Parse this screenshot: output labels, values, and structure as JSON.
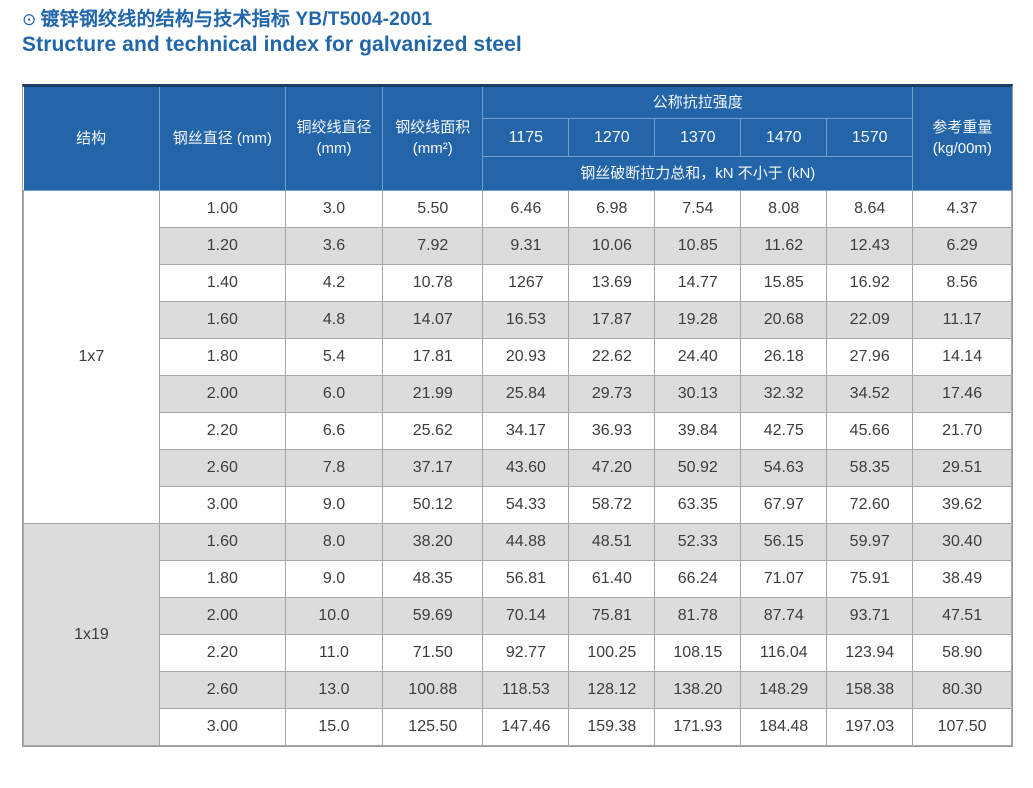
{
  "page": {
    "bullet_icon": "⊙",
    "title_cn": "镀锌钢绞线的结构与技术指标 YB/T5004-2001",
    "title_en": "Structure and technical index for galvanized steel"
  },
  "table": {
    "header": {
      "structure": "结构",
      "wire_diameter": "钢丝直径 (mm)",
      "strand_diameter": "铜绞线直径 (mm)",
      "strand_area": "钢绞线面积 (mm²)",
      "tensile_group": "公称抗拉强度",
      "tensile_grades": [
        "1175",
        "1270",
        "1370",
        "1470",
        "1570"
      ],
      "breaking_note": "钢丝破断拉力总和，kN 不小于 (kN)",
      "ref_weight": "参考重量 (kg/00m)"
    },
    "sections": [
      {
        "structure": "1x7",
        "rows": [
          [
            "1.00",
            "3.0",
            "5.50",
            "6.46",
            "6.98",
            "7.54",
            "8.08",
            "8.64",
            "4.37"
          ],
          [
            "1.20",
            "3.6",
            "7.92",
            "9.31",
            "10.06",
            "10.85",
            "11.62",
            "12.43",
            "6.29"
          ],
          [
            "1.40",
            "4.2",
            "10.78",
            "1267",
            "13.69",
            "14.77",
            "15.85",
            "16.92",
            "8.56"
          ],
          [
            "1.60",
            "4.8",
            "14.07",
            "16.53",
            "17.87",
            "19.28",
            "20.68",
            "22.09",
            "11.17"
          ],
          [
            "1.80",
            "5.4",
            "17.81",
            "20.93",
            "22.62",
            "24.40",
            "26.18",
            "27.96",
            "14.14"
          ],
          [
            "2.00",
            "6.0",
            "21.99",
            "25.84",
            "29.73",
            "30.13",
            "32.32",
            "34.52",
            "17.46"
          ],
          [
            "2.20",
            "6.6",
            "25.62",
            "34.17",
            "36.93",
            "39.84",
            "42.75",
            "45.66",
            "21.70"
          ],
          [
            "2.60",
            "7.8",
            "37.17",
            "43.60",
            "47.20",
            "50.92",
            "54.63",
            "58.35",
            "29.51"
          ],
          [
            "3.00",
            "9.0",
            "50.12",
            "54.33",
            "58.72",
            "63.35",
            "67.97",
            "72.60",
            "39.62"
          ]
        ]
      },
      {
        "structure": "1x19",
        "rows": [
          [
            "1.60",
            "8.0",
            "38.20",
            "44.88",
            "48.51",
            "52.33",
            "56.15",
            "59.97",
            "30.40"
          ],
          [
            "1.80",
            "9.0",
            "48.35",
            "56.81",
            "61.40",
            "66.24",
            "71.07",
            "75.91",
            "38.49"
          ],
          [
            "2.00",
            "10.0",
            "59.69",
            "70.14",
            "75.81",
            "81.78",
            "87.74",
            "93.71",
            "47.51"
          ],
          [
            "2.20",
            "11.0",
            "71.50",
            "92.77",
            "100.25",
            "108.15",
            "116.04",
            "123.94",
            "58.90"
          ],
          [
            "2.60",
            "13.0",
            "100.88",
            "118.53",
            "128.12",
            "138.20",
            "148.29",
            "158.38",
            "80.30"
          ],
          [
            "3.00",
            "15.0",
            "125.50",
            "147.46",
            "159.38",
            "171.93",
            "184.48",
            "197.03",
            "107.50"
          ]
        ]
      }
    ]
  },
  "colors": {
    "title_blue": "#2166ab",
    "header_bg": "#2365a8",
    "header_line": "#6f9fcd",
    "top_bar": "#1d3c61",
    "stripe": "#dcdcdc",
    "cell_border": "#a6a6a6",
    "text_dark": "#3d3d3d"
  }
}
